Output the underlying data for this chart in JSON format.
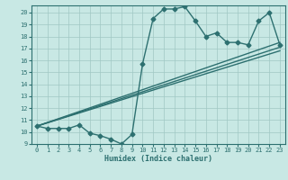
{
  "title": "",
  "xlabel": "Humidex (Indice chaleur)",
  "xlim": [
    -0.5,
    23.5
  ],
  "ylim": [
    9,
    20.6
  ],
  "yticks": [
    9,
    10,
    11,
    12,
    13,
    14,
    15,
    16,
    17,
    18,
    19,
    20
  ],
  "xticks": [
    0,
    1,
    2,
    3,
    4,
    5,
    6,
    7,
    8,
    9,
    10,
    11,
    12,
    13,
    14,
    15,
    16,
    17,
    18,
    19,
    20,
    21,
    22,
    23
  ],
  "bg_color": "#c8e8e4",
  "line_color": "#2d7070",
  "grid_color": "#a0c8c4",
  "marker": "D",
  "marker_size": 2.5,
  "line_width": 1.0,
  "series1_x": [
    0,
    1,
    2,
    3,
    4,
    5,
    6,
    7,
    8,
    9,
    10,
    11,
    12,
    13,
    14,
    15,
    16,
    17,
    18,
    19,
    20,
    21,
    22,
    23
  ],
  "series1_y": [
    10.5,
    10.3,
    10.3,
    10.3,
    10.6,
    9.9,
    9.7,
    9.4,
    9.0,
    9.8,
    15.7,
    19.5,
    20.3,
    20.3,
    20.5,
    19.3,
    18.0,
    18.3,
    17.5,
    17.5,
    17.3,
    19.3,
    20.0,
    17.3
  ],
  "trend1_x": [
    0,
    23
  ],
  "trend1_y": [
    10.5,
    17.5
  ],
  "trend2_x": [
    0,
    23
  ],
  "trend2_y": [
    10.5,
    17.1
  ],
  "trend3_x": [
    0,
    23
  ],
  "trend3_y": [
    10.5,
    16.8
  ]
}
